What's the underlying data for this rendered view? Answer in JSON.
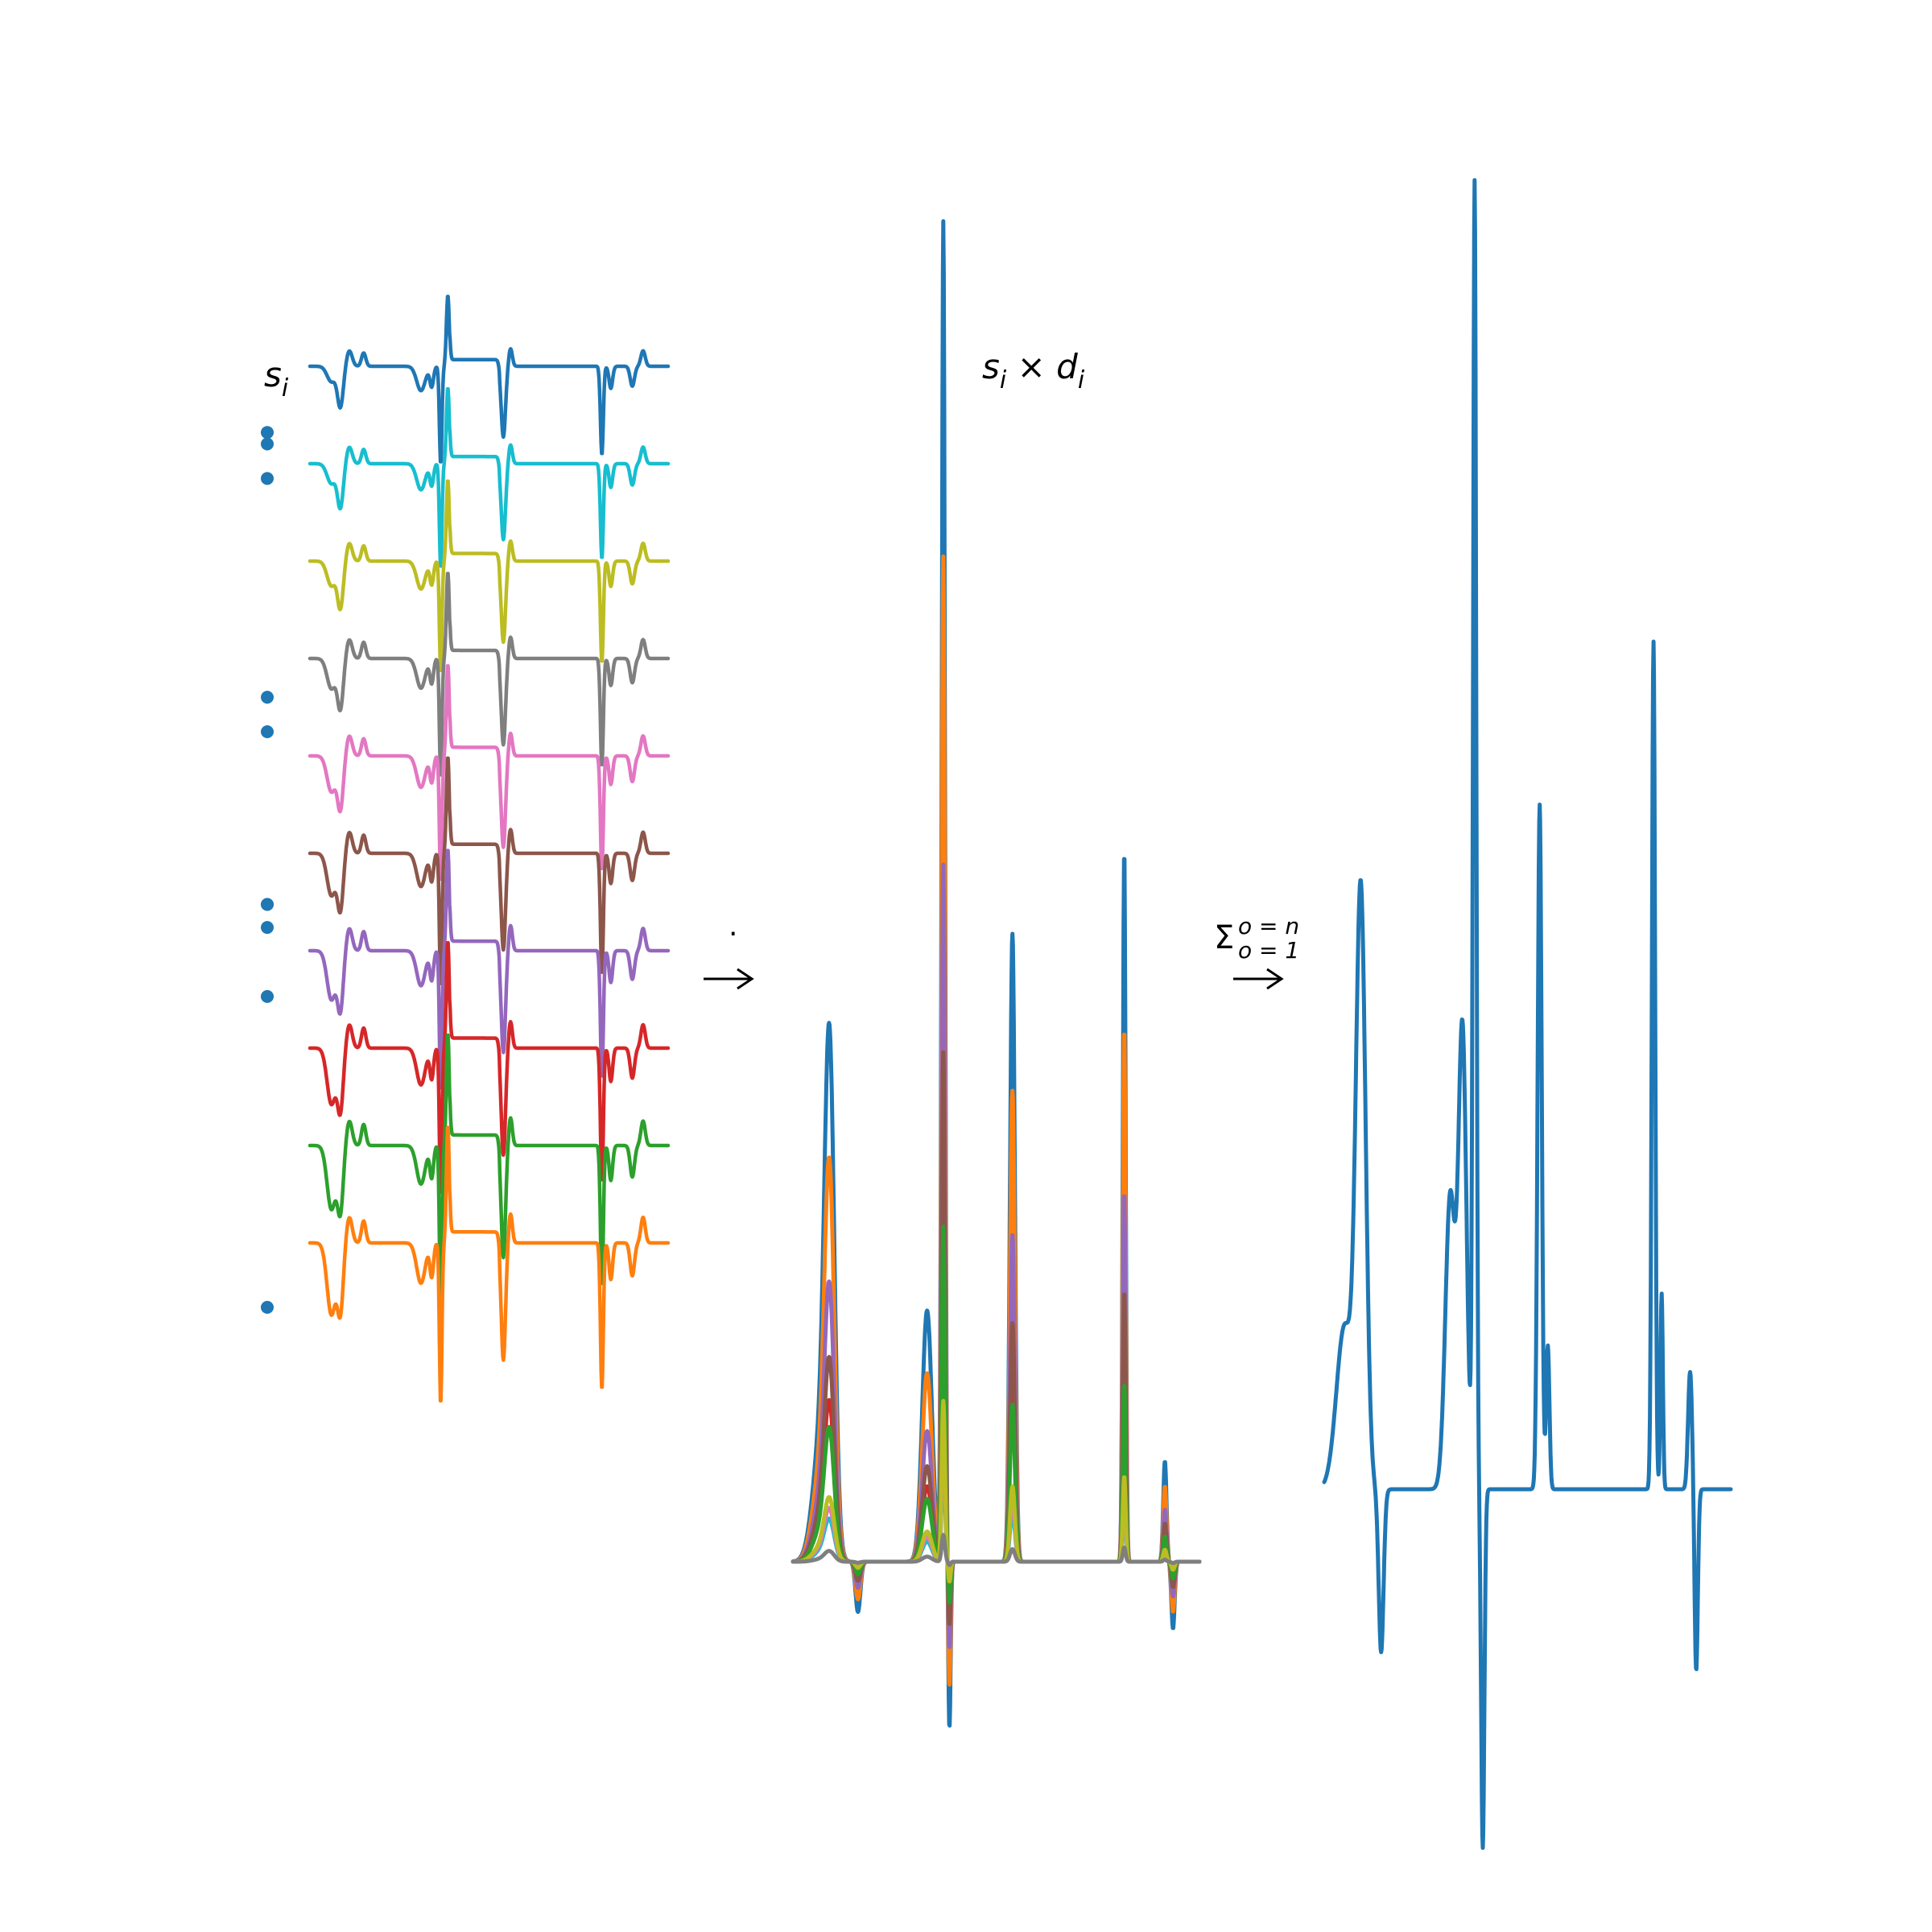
{
  "labels": {
    "signals": "s",
    "signals_sub": "i",
    "product_s": "s",
    "product_s_sub": "i",
    "product_times": " × ",
    "product_d": "d",
    "product_d_sub": "i",
    "dot_operator": "·",
    "sum_symbol": "Σ",
    "sum_upper": "o = n",
    "sum_lower": "o = 1",
    "arrow": "→"
  },
  "colors": {
    "blue": "#1f77b4",
    "orange": "#ff7f0e",
    "green": "#2ca02c",
    "red": "#d62728",
    "purple": "#9467bd",
    "brown": "#8c564b",
    "pink": "#e377c2",
    "gray": "#7f7f7f",
    "olive": "#bcbd22",
    "cyan": "#17becf"
  },
  "signals_order": [
    "blue",
    "cyan",
    "olive",
    "gray",
    "pink",
    "brown",
    "purple",
    "red",
    "green",
    "orange"
  ],
  "weights": [
    0.47,
    0.53,
    0.55,
    0.73,
    0.55,
    0.7,
    0.92,
    0.96,
    0.95,
    0.2
  ],
  "weights_display": "dot markers"
}
